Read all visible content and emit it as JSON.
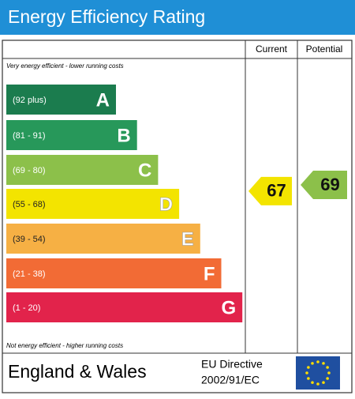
{
  "title": "Energy Efficiency Rating",
  "headers": [
    "Current",
    "Potential"
  ],
  "top_note": "Very energy efficient - lower running costs",
  "bottom_note": "Not energy efficient - higher running costs",
  "bands": [
    {
      "range": "(92 plus)",
      "letter": "A",
      "color": "#1b7c4e"
    },
    {
      "range": "(81 - 91)",
      "letter": "B",
      "color": "#27985a"
    },
    {
      "range": "(69 - 80)",
      "letter": "C",
      "color": "#8cc04a"
    },
    {
      "range": "(55 - 68)",
      "letter": "D",
      "color": "#f3e400"
    },
    {
      "range": "(39 - 54)",
      "letter": "E",
      "color": "#f6b044"
    },
    {
      "range": "(21 - 38)",
      "letter": "F",
      "color": "#f26b35"
    },
    {
      "range": "(1 - 20)",
      "letter": "G",
      "color": "#e2234b"
    }
  ],
  "current": {
    "value": 67
  },
  "potential": {
    "value": 69
  },
  "footer": {
    "region": "England & Wales",
    "directive": [
      "EU Directive",
      "2002/91/EC"
    ]
  }
}
